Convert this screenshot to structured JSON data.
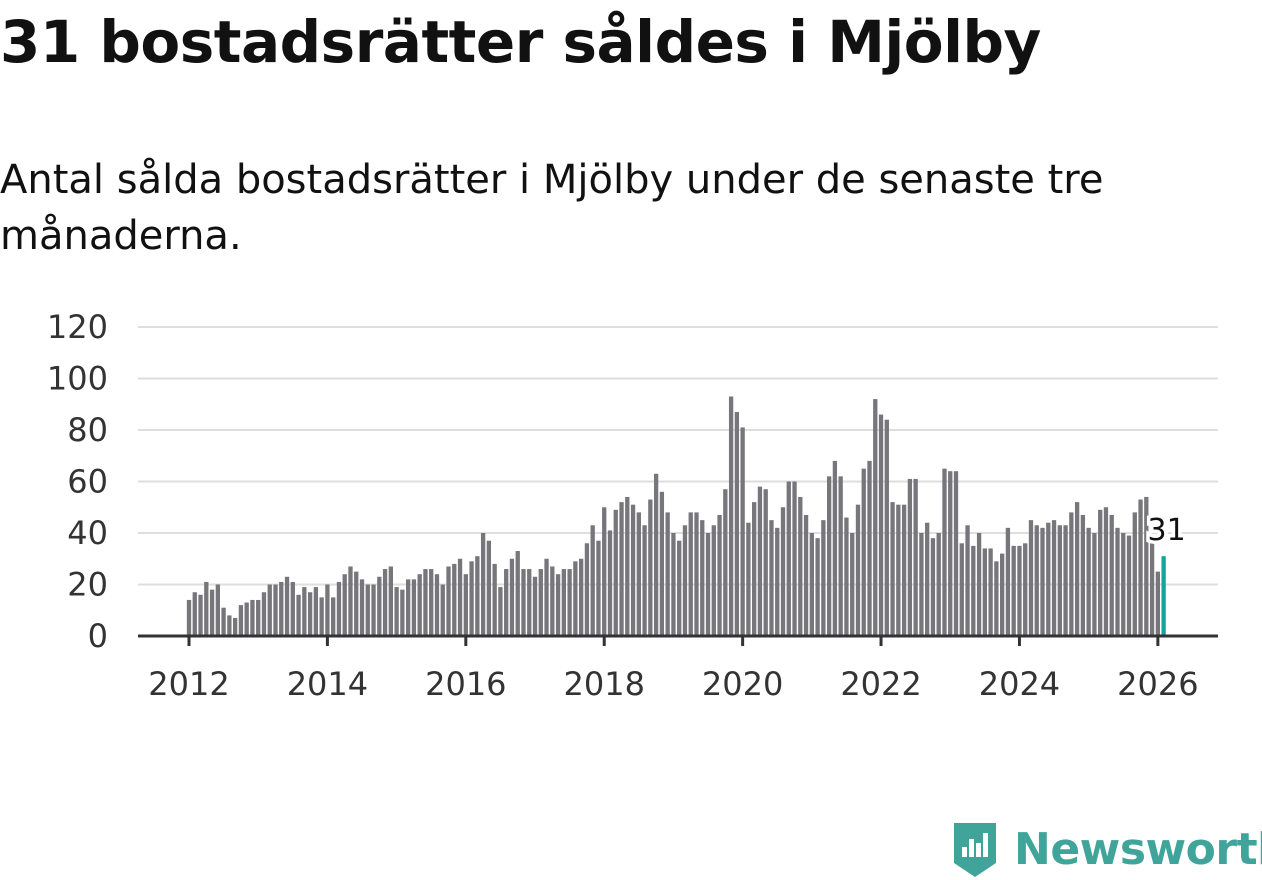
{
  "header": {
    "title": "31 bostadsrätter såldes i Mjölby",
    "subtitle": "Antal sålda bostadsrätter i Mjölby under de senaste tre månaderna."
  },
  "brand": {
    "name": "Newsworthy",
    "color": "#41a49a",
    "icon": "newsworthy-logo-icon"
  },
  "colors": {
    "bar": "#76767b",
    "highlight": "#17a29a",
    "grid": "#dedede",
    "axis": "#333333"
  },
  "chart_data": {
    "type": "bar",
    "title": "31 bostadsrätter såldes i Mjölby",
    "subtitle": "Antal sålda bostadsrätter i Mjölby under de senaste tre månaderna.",
    "xlabel": "",
    "ylabel": "",
    "ylim": [
      0,
      120
    ],
    "yticks": [
      0,
      20,
      40,
      60,
      80,
      100,
      120
    ],
    "xticks": [
      "2012",
      "2014",
      "2016",
      "2018",
      "2020",
      "2022",
      "2024",
      "2026"
    ],
    "grid": true,
    "x_start": "2012-01",
    "interval": "month",
    "highlight_label": "31",
    "series": [
      {
        "name": "Antal sålda bostadsrätter",
        "values": [
          14,
          17,
          16,
          21,
          18,
          20,
          11,
          8,
          7,
          12,
          13,
          14,
          14,
          17,
          20,
          20,
          21,
          23,
          21,
          16,
          19,
          17,
          19,
          15,
          20,
          15,
          21,
          24,
          27,
          25,
          22,
          20,
          20,
          23,
          26,
          27,
          19,
          18,
          22,
          22,
          24,
          26,
          26,
          24,
          20,
          27,
          28,
          30,
          24,
          29,
          31,
          40,
          37,
          28,
          19,
          26,
          30,
          33,
          26,
          26,
          23,
          26,
          30,
          27,
          24,
          26,
          26,
          29,
          30,
          36,
          43,
          37,
          50,
          41,
          49,
          52,
          54,
          51,
          48,
          43,
          53,
          63,
          56,
          48,
          40,
          37,
          43,
          48,
          48,
          45,
          40,
          43,
          47,
          57,
          93,
          87,
          81,
          44,
          52,
          58,
          57,
          45,
          42,
          50,
          60,
          60,
          54,
          47,
          40,
          38,
          45,
          62,
          68,
          62,
          46,
          40,
          51,
          65,
          68,
          92,
          86,
          84,
          52,
          51,
          51,
          61,
          61,
          40,
          44,
          38,
          40,
          65,
          64,
          64,
          36,
          43,
          35,
          40,
          34,
          34,
          29,
          32,
          42,
          35,
          35,
          36,
          45,
          43,
          42,
          44,
          45,
          43,
          43,
          48,
          52,
          47,
          42,
          40,
          49,
          50,
          47,
          42,
          40,
          39,
          48,
          53,
          54,
          36,
          25,
          31
        ]
      }
    ]
  }
}
